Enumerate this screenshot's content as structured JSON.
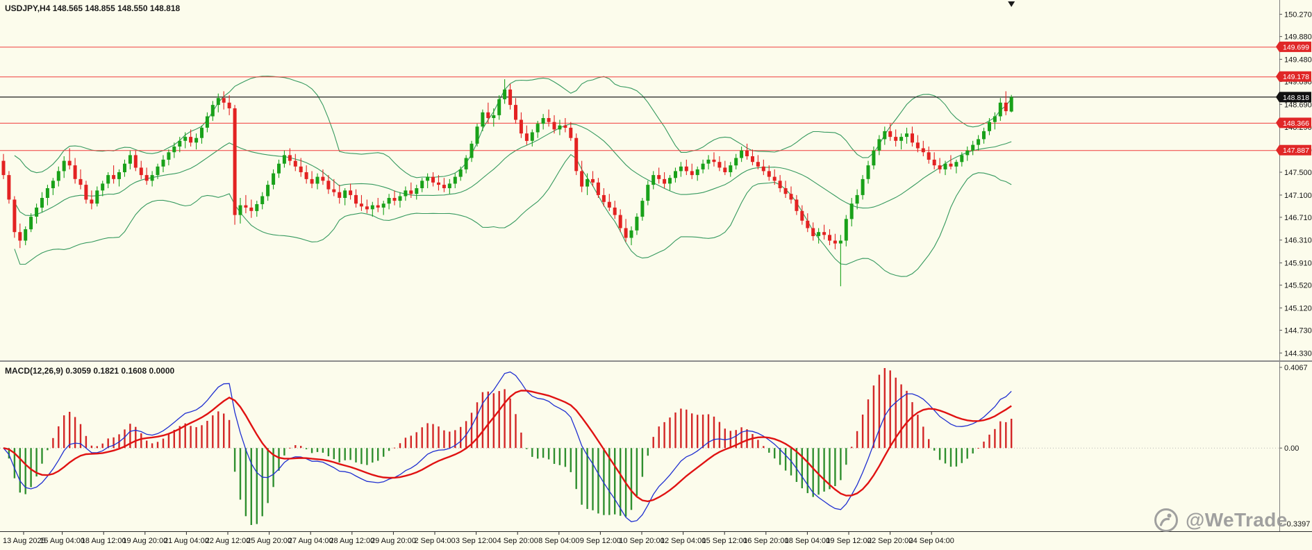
{
  "window": {
    "background": "#FCFCEC"
  },
  "chart_data": {
    "type": "candlestick",
    "symbol": "USDJPY",
    "timeframe": "H4",
    "title": "USDJPY,H4 148.565 148.855 148.550 148.818",
    "ohlc_display": {
      "open": "148.565",
      "high": "148.855",
      "low": "148.550",
      "close": "148.818"
    },
    "watermark": "@WeTrade",
    "colors": {
      "bull": "#19a119",
      "bear": "#e32222",
      "level_line": "#f03b3b",
      "level_box": "#e02727",
      "bid_line": "#1f1f1f",
      "bid_box": "#111111",
      "axis_text": "#141414"
    },
    "price_axis": {
      "max": 150.52,
      "min": 144.2,
      "ticks": [
        "150.270",
        "149.880",
        "149.480",
        "149.090",
        "148.690",
        "148.290",
        "147.890",
        "147.500",
        "147.100",
        "146.710",
        "146.310",
        "145.910",
        "145.520",
        "145.120",
        "144.730",
        "144.330"
      ]
    },
    "levels": [
      {
        "price": 149.699,
        "label": "149.699"
      },
      {
        "price": 149.178,
        "label": "149.178"
      },
      {
        "price": 148.366,
        "label": "148.366"
      },
      {
        "price": 147.887,
        "label": "147.887"
      }
    ],
    "bid": {
      "price": 148.818,
      "label": "148.818"
    },
    "bollinger": {
      "period": 20,
      "deviation": 2,
      "color": "#35995e"
    },
    "macd": {
      "label": "MACD(12,26,9) 0.3059 0.1821 0.1608 0.0000",
      "fast": 12,
      "slow": 26,
      "signal": 9,
      "histogram_scale": 2,
      "axis_labels": {
        "top": "0.4067",
        "zero": "0.00",
        "bottom": "-0.3397"
      },
      "colors": {
        "hist_pos": "#d32626",
        "hist_neg": "#2f8f2f",
        "macd_line": "#1f2fd0",
        "signal_line": "#e01212"
      }
    },
    "markers": {
      "last_bar_pointer": "triangle-down"
    },
    "time_labels": [
      "13 Aug 2025",
      "15 Aug 04:00",
      "18 Aug 12:00",
      "19 Aug 20:00",
      "21 Aug 04:00",
      "22 Aug 12:00",
      "25 Aug 20:00",
      "27 Aug 04:00",
      "28 Aug 12:00",
      "29 Aug 20:00",
      "2 Sep 04:00",
      "3 Sep 12:00",
      "4 Sep 20:00",
      "8 Sep 04:00",
      "9 Sep 12:00",
      "10 Sep 20:00",
      "12 Sep 04:00",
      "15 Sep 12:00",
      "16 Sep 20:00",
      "18 Sep 04:00",
      "19 Sep 12:00",
      "22 Sep 20:00",
      "24 Sep 04:00"
    ],
    "candles": [
      [
        147.7,
        147.82,
        147.38,
        147.45
      ],
      [
        147.45,
        147.52,
        146.95,
        147.02
      ],
      [
        147.02,
        147.08,
        146.35,
        146.45
      ],
      [
        146.45,
        146.6,
        146.17,
        146.3
      ],
      [
        146.3,
        146.55,
        146.22,
        146.5
      ],
      [
        146.5,
        146.78,
        146.45,
        146.72
      ],
      [
        146.72,
        146.95,
        146.6,
        146.88
      ],
      [
        146.88,
        147.15,
        146.8,
        147.05
      ],
      [
        147.05,
        147.28,
        146.92,
        147.22
      ],
      [
        147.22,
        147.4,
        147.1,
        147.35
      ],
      [
        147.35,
        147.6,
        147.25,
        147.52
      ],
      [
        147.52,
        147.78,
        147.4,
        147.7
      ],
      [
        147.7,
        147.92,
        147.55,
        147.62
      ],
      [
        147.62,
        147.75,
        147.3,
        147.38
      ],
      [
        147.38,
        147.55,
        147.2,
        147.28
      ],
      [
        147.28,
        147.35,
        146.95,
        147.02
      ],
      [
        147.02,
        147.18,
        146.85,
        146.95
      ],
      [
        146.95,
        147.25,
        146.9,
        147.18
      ],
      [
        147.18,
        147.35,
        147.08,
        147.3
      ],
      [
        147.3,
        147.5,
        147.22,
        147.45
      ],
      [
        147.45,
        147.62,
        147.3,
        147.38
      ],
      [
        147.38,
        147.55,
        147.25,
        147.5
      ],
      [
        147.5,
        147.72,
        147.42,
        147.65
      ],
      [
        147.65,
        147.88,
        147.55,
        147.8
      ],
      [
        147.8,
        147.88,
        147.52,
        147.58
      ],
      [
        147.58,
        147.7,
        147.38,
        147.45
      ],
      [
        147.45,
        147.58,
        147.28,
        147.35
      ],
      [
        147.35,
        147.52,
        147.25,
        147.45
      ],
      [
        147.45,
        147.65,
        147.38,
        147.6
      ],
      [
        147.6,
        147.8,
        147.5,
        147.72
      ],
      [
        147.72,
        147.9,
        147.62,
        147.85
      ],
      [
        147.85,
        148.02,
        147.75,
        147.95
      ],
      [
        147.95,
        148.12,
        147.85,
        148.05
      ],
      [
        148.05,
        148.2,
        147.92,
        148.12
      ],
      [
        148.12,
        148.25,
        147.95,
        148.02
      ],
      [
        148.02,
        148.18,
        147.9,
        148.1
      ],
      [
        148.1,
        148.32,
        148.0,
        148.28
      ],
      [
        148.28,
        148.55,
        148.2,
        148.48
      ],
      [
        148.48,
        148.75,
        148.4,
        148.68
      ],
      [
        148.68,
        148.88,
        148.55,
        148.8
      ],
      [
        148.8,
        148.92,
        148.6,
        148.72
      ],
      [
        148.72,
        148.85,
        148.5,
        148.62
      ],
      [
        148.62,
        148.68,
        146.58,
        146.75
      ],
      [
        146.75,
        147.05,
        146.6,
        146.92
      ],
      [
        146.92,
        147.1,
        146.78,
        146.88
      ],
      [
        146.88,
        147.02,
        146.7,
        146.82
      ],
      [
        146.82,
        147.0,
        146.72,
        146.94
      ],
      [
        146.94,
        147.15,
        146.85,
        147.08
      ],
      [
        147.08,
        147.35,
        147.0,
        147.28
      ],
      [
        147.28,
        147.55,
        147.2,
        147.48
      ],
      [
        147.48,
        147.72,
        147.4,
        147.65
      ],
      [
        147.65,
        147.88,
        147.58,
        147.8
      ],
      [
        147.8,
        147.92,
        147.62,
        147.7
      ],
      [
        147.7,
        147.82,
        147.52,
        147.6
      ],
      [
        147.6,
        147.75,
        147.42,
        147.5
      ],
      [
        147.5,
        147.62,
        147.3,
        147.38
      ],
      [
        147.38,
        147.52,
        147.22,
        147.3
      ],
      [
        147.3,
        147.48,
        147.2,
        147.42
      ],
      [
        147.42,
        147.55,
        147.28,
        147.35
      ],
      [
        147.35,
        147.45,
        147.12,
        147.2
      ],
      [
        147.2,
        147.38,
        147.08,
        147.15
      ],
      [
        147.15,
        147.28,
        146.95,
        147.05
      ],
      [
        147.05,
        147.22,
        146.92,
        147.18
      ],
      [
        147.18,
        147.3,
        147.02,
        147.1
      ],
      [
        147.1,
        147.2,
        146.88,
        146.95
      ],
      [
        146.95,
        147.1,
        146.82,
        146.9
      ],
      [
        146.9,
        147.02,
        146.78,
        146.85
      ],
      [
        146.85,
        146.98,
        146.72,
        146.92
      ],
      [
        146.92,
        147.05,
        146.8,
        146.88
      ],
      [
        146.88,
        147.0,
        146.75,
        146.95
      ],
      [
        146.95,
        147.12,
        146.85,
        147.05
      ],
      [
        147.05,
        147.18,
        146.92,
        147.0
      ],
      [
        147.0,
        147.15,
        146.88,
        147.08
      ],
      [
        147.08,
        147.25,
        147.0,
        147.18
      ],
      [
        147.18,
        147.32,
        147.05,
        147.12
      ],
      [
        147.12,
        147.28,
        147.02,
        147.22
      ],
      [
        147.22,
        147.4,
        147.15,
        147.35
      ],
      [
        147.35,
        147.48,
        147.22,
        147.42
      ],
      [
        147.42,
        147.5,
        147.25,
        147.32
      ],
      [
        147.32,
        147.45,
        147.18,
        147.28
      ],
      [
        147.28,
        147.4,
        147.15,
        147.22
      ],
      [
        147.22,
        147.38,
        147.12,
        147.3
      ],
      [
        147.3,
        147.48,
        147.22,
        147.42
      ],
      [
        147.42,
        147.6,
        147.35,
        147.55
      ],
      [
        147.55,
        147.8,
        147.48,
        147.75
      ],
      [
        147.75,
        148.05,
        147.68,
        148.0
      ],
      [
        148.0,
        148.35,
        147.95,
        148.3
      ],
      [
        148.3,
        148.6,
        148.22,
        148.55
      ],
      [
        148.55,
        148.72,
        148.35,
        148.45
      ],
      [
        148.45,
        148.62,
        148.3,
        148.5
      ],
      [
        148.5,
        148.85,
        148.42,
        148.78
      ],
      [
        148.78,
        149.13,
        148.7,
        148.95
      ],
      [
        148.95,
        149.05,
        148.6,
        148.68
      ],
      [
        148.68,
        148.8,
        148.35,
        148.42
      ],
      [
        148.42,
        148.55,
        148.1,
        148.18
      ],
      [
        148.18,
        148.32,
        147.98,
        148.05
      ],
      [
        148.05,
        148.25,
        147.95,
        148.2
      ],
      [
        148.2,
        148.4,
        148.1,
        148.35
      ],
      [
        148.35,
        148.52,
        148.25,
        148.45
      ],
      [
        148.45,
        148.6,
        148.3,
        148.38
      ],
      [
        148.38,
        148.5,
        148.18,
        148.25
      ],
      [
        148.25,
        148.42,
        148.15,
        148.32
      ],
      [
        148.32,
        148.45,
        148.2,
        148.28
      ],
      [
        148.28,
        148.38,
        148.05,
        148.1
      ],
      [
        148.1,
        148.18,
        147.45,
        147.52
      ],
      [
        147.52,
        147.7,
        147.15,
        147.25
      ],
      [
        147.25,
        147.48,
        147.1,
        147.38
      ],
      [
        147.38,
        147.52,
        147.25,
        147.32
      ],
      [
        147.32,
        147.4,
        147.05,
        147.1
      ],
      [
        147.1,
        147.22,
        146.9,
        146.98
      ],
      [
        146.98,
        147.12,
        146.82,
        146.88
      ],
      [
        146.88,
        147.0,
        146.68,
        146.75
      ],
      [
        146.75,
        146.85,
        146.45,
        146.52
      ],
      [
        146.52,
        146.68,
        146.28,
        146.35
      ],
      [
        146.35,
        146.55,
        146.22,
        146.48
      ],
      [
        146.48,
        146.78,
        146.4,
        146.72
      ],
      [
        146.72,
        147.05,
        146.65,
        147.0
      ],
      [
        147.0,
        147.35,
        146.92,
        147.28
      ],
      [
        147.28,
        147.52,
        147.2,
        147.45
      ],
      [
        147.45,
        147.58,
        147.3,
        147.38
      ],
      [
        147.38,
        147.5,
        147.22,
        147.3
      ],
      [
        147.3,
        147.45,
        147.18,
        147.4
      ],
      [
        147.4,
        147.58,
        147.32,
        147.52
      ],
      [
        147.52,
        147.68,
        147.42,
        147.6
      ],
      [
        147.6,
        147.72,
        147.45,
        147.52
      ],
      [
        147.52,
        147.65,
        147.38,
        147.45
      ],
      [
        147.45,
        147.6,
        147.35,
        147.55
      ],
      [
        147.55,
        147.72,
        147.48,
        147.65
      ],
      [
        147.65,
        147.8,
        147.55,
        147.72
      ],
      [
        147.72,
        147.85,
        147.6,
        147.68
      ],
      [
        147.68,
        147.78,
        147.52,
        147.58
      ],
      [
        147.58,
        147.7,
        147.45,
        147.5
      ],
      [
        147.5,
        147.68,
        147.42,
        147.62
      ],
      [
        147.62,
        147.82,
        147.55,
        147.75
      ],
      [
        147.75,
        147.95,
        147.68,
        147.88
      ],
      [
        147.88,
        148.0,
        147.72,
        147.78
      ],
      [
        147.78,
        147.9,
        147.62,
        147.68
      ],
      [
        147.68,
        147.8,
        147.55,
        147.6
      ],
      [
        147.6,
        147.72,
        147.45,
        147.52
      ],
      [
        147.52,
        147.62,
        147.35,
        147.42
      ],
      [
        147.42,
        147.55,
        147.28,
        147.35
      ],
      [
        147.35,
        147.45,
        147.15,
        147.22
      ],
      [
        147.22,
        147.35,
        147.05,
        147.12
      ],
      [
        147.12,
        147.25,
        146.95,
        147.02
      ],
      [
        147.02,
        147.1,
        146.75,
        146.82
      ],
      [
        146.82,
        146.92,
        146.58,
        146.65
      ],
      [
        146.65,
        146.78,
        146.45,
        146.52
      ],
      [
        146.52,
        146.62,
        146.3,
        146.38
      ],
      [
        146.38,
        146.52,
        146.25,
        146.45
      ],
      [
        146.45,
        146.58,
        146.32,
        146.4
      ],
      [
        146.4,
        146.5,
        146.22,
        146.3
      ],
      [
        146.3,
        146.42,
        146.15,
        146.25
      ],
      [
        146.25,
        146.4,
        145.5,
        146.3
      ],
      [
        146.3,
        146.75,
        146.2,
        146.68
      ],
      [
        146.68,
        147.05,
        146.55,
        146.95
      ],
      [
        146.95,
        147.2,
        146.85,
        147.1
      ],
      [
        147.1,
        147.45,
        147.02,
        147.38
      ],
      [
        147.38,
        147.7,
        147.3,
        147.62
      ],
      [
        147.62,
        147.95,
        147.55,
        147.88
      ],
      [
        147.88,
        148.15,
        147.8,
        148.08
      ],
      [
        148.08,
        148.3,
        147.98,
        148.22
      ],
      [
        148.22,
        148.35,
        148.05,
        148.12
      ],
      [
        148.12,
        148.25,
        147.95,
        148.05
      ],
      [
        148.05,
        148.18,
        147.9,
        148.12
      ],
      [
        148.12,
        148.28,
        148.0,
        148.18
      ],
      [
        148.18,
        148.3,
        147.95,
        148.02
      ],
      [
        148.02,
        148.15,
        147.85,
        147.92
      ],
      [
        147.92,
        148.05,
        147.78,
        147.85
      ],
      [
        147.85,
        147.95,
        147.65,
        147.72
      ],
      [
        147.72,
        147.85,
        147.55,
        147.62
      ],
      [
        147.62,
        147.75,
        147.48,
        147.55
      ],
      [
        147.55,
        147.7,
        147.45,
        147.65
      ],
      [
        147.65,
        147.8,
        147.55,
        147.6
      ],
      [
        147.6,
        147.72,
        147.48,
        147.68
      ],
      [
        147.68,
        147.85,
        147.6,
        147.8
      ],
      [
        147.8,
        147.95,
        147.7,
        147.88
      ],
      [
        147.88,
        148.05,
        147.8,
        147.98
      ],
      [
        147.98,
        148.15,
        147.88,
        148.08
      ],
      [
        148.08,
        148.28,
        148.0,
        148.22
      ],
      [
        148.22,
        148.45,
        148.15,
        148.38
      ],
      [
        148.38,
        148.55,
        148.25,
        148.48
      ],
      [
        148.48,
        148.8,
        148.4,
        148.72
      ],
      [
        148.72,
        148.92,
        148.5,
        148.57
      ],
      [
        148.565,
        148.855,
        148.55,
        148.818
      ]
    ]
  }
}
